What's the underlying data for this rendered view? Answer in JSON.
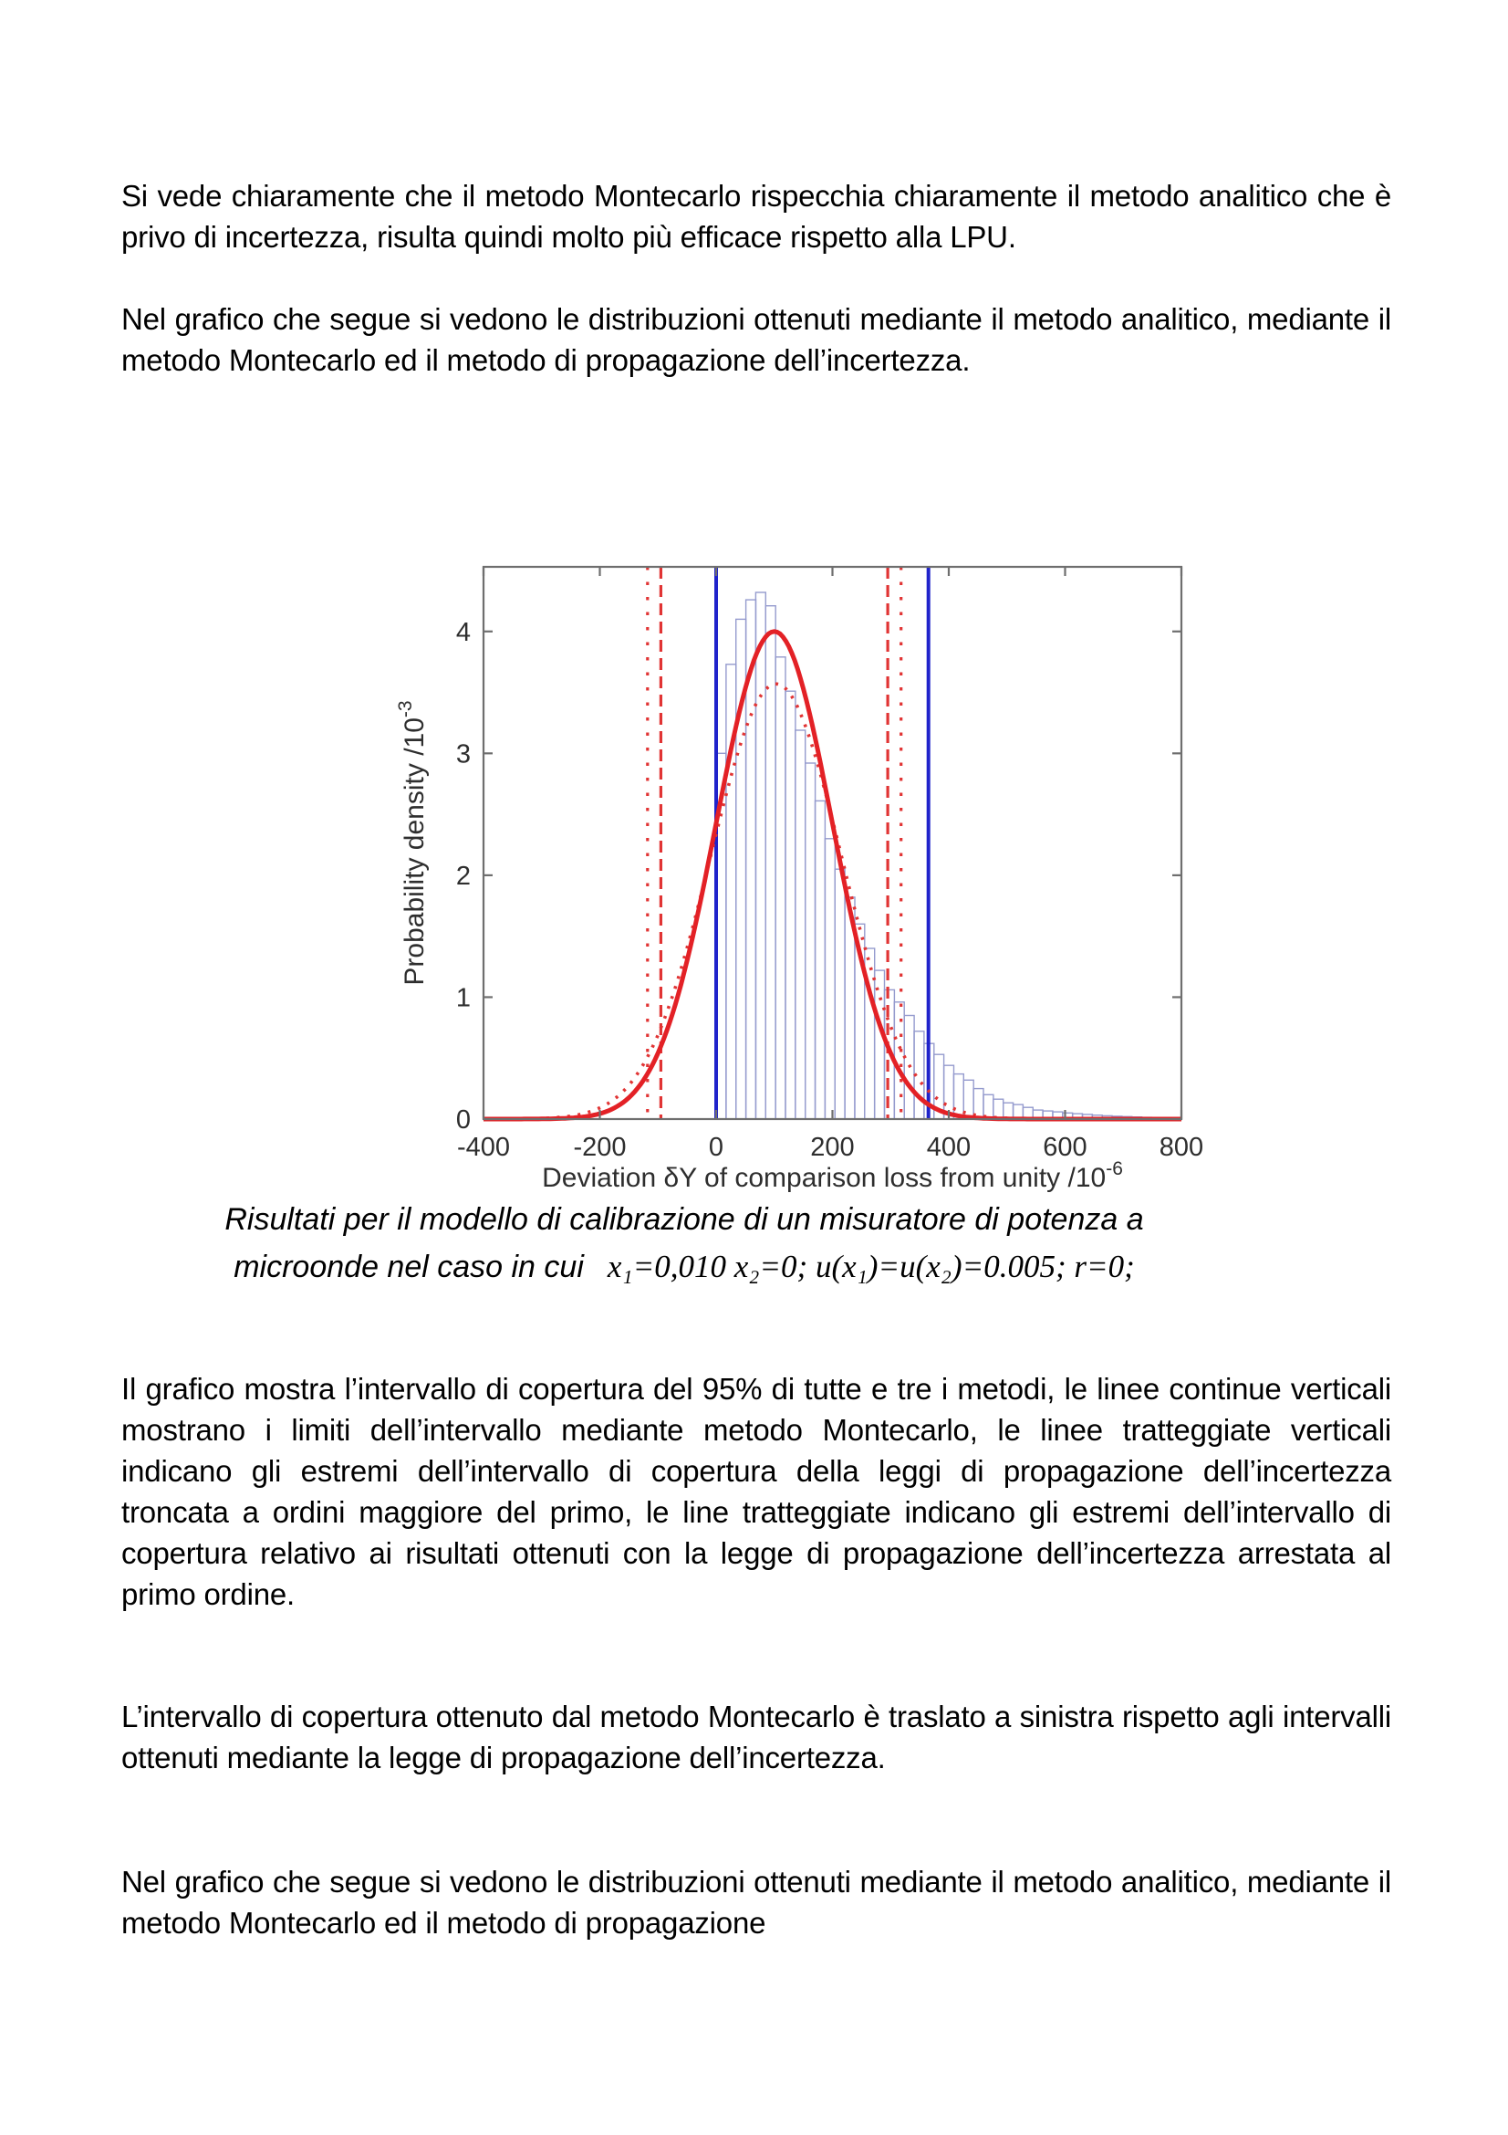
{
  "document": {
    "paragraphs": {
      "p1": "Si vede chiaramente che il metodo Montecarlo rispecchia chiaramente il metodo analitico che è privo di incertezza,  risulta quindi molto più efficace rispetto alla LPU.",
      "p2": "Nel grafico che segue si vedono le distribuzioni ottenuti mediante il metodo analitico,  mediante il metodo Montecarlo ed il metodo di propagazione dell’incertezza.",
      "p3": "Il grafico mostra l’intervallo di copertura del 95% di tutte e tre i metodi,  le linee continue verticali mostrano i limiti dell’intervallo mediante metodo Montecarlo,  le linee tratteggiate verticali indicano gli estremi dell’intervallo di copertura della leggi di propagazione dell’incertezza troncata a ordini maggiore del primo,  le line tratteggiate indicano gli estremi dell’intervallo di copertura relativo ai risultati ottenuti con la legge di propagazione dell’incertezza arrestata al primo ordine.",
      "p4": "L’intervallo di copertura ottenuto dal metodo Montecarlo è traslato a sinistra rispetto agli intervalli ottenuti mediante la legge di propagazione dell’incertezza.",
      "p5": "Nel grafico che segue si vedono le distribuzioni ottenuti mediante il metodo analitico,  mediante il metodo Montecarlo ed il metodo di propagazione"
    },
    "caption": {
      "line1": "Risultati per il modello di calibrazione di un misuratore di potenza a",
      "line2_text": "microonde nel caso in cui",
      "formula": "x₁=0,010 x₂=0; u(x₁)=u(x₂)=0.005; r=0;"
    }
  },
  "chart_data": {
    "type": "histogram",
    "title": "",
    "xlabel": "Deviation δY  of comparison loss from unity /10⁻⁶",
    "ylabel": "Probability density /10⁻³",
    "xlim": [
      -400,
      800
    ],
    "ylim": [
      0,
      4.53
    ],
    "xticks": [
      -400,
      -200,
      0,
      200,
      400,
      600,
      800
    ],
    "yticks": [
      0,
      1,
      2,
      3,
      4
    ],
    "grid": false,
    "legend": "none",
    "axis_color": "#6e6e6e",
    "tick_label_color": "#2e2e2e",
    "histogram": {
      "name": "montecarlo-distribution",
      "color": "#959bce",
      "bin_start": 0,
      "bin_width": 17.02,
      "heights": [
        3.0,
        3.73,
        4.1,
        4.26,
        4.32,
        4.21,
        3.79,
        3.51,
        3.19,
        2.92,
        2.61,
        2.3,
        2.05,
        1.82,
        1.6,
        1.4,
        1.22,
        1.06,
        0.96,
        0.85,
        0.72,
        0.62,
        0.53,
        0.44,
        0.37,
        0.32,
        0.25,
        0.2,
        0.163,
        0.133,
        0.119,
        0.096,
        0.074,
        0.067,
        0.059,
        0.05,
        0.044,
        0.038,
        0.032,
        0.027,
        0.023,
        0.02,
        0.017,
        0.014,
        0.012,
        0.01,
        0.008
      ]
    },
    "curves": [
      {
        "name": "lpu-first-order-pdf",
        "style": "dotted",
        "color": "#e13434",
        "peak": 3.57,
        "mean": 103,
        "sigma": 112
      },
      {
        "name": "analytic-pdf",
        "style": "solid",
        "color": "#e32126",
        "peak": 4.0,
        "mean": 100,
        "sigma": 100
      }
    ],
    "vlines": [
      {
        "name": "lpu-first-order-95-low",
        "x": -118,
        "style": "dotted",
        "color": "#e13434"
      },
      {
        "name": "lpu-truncated-95-low",
        "x": -95,
        "style": "dashed",
        "color": "#e13434"
      },
      {
        "name": "lpu-truncated-95-high",
        "x": 295,
        "style": "dashed",
        "color": "#e13434"
      },
      {
        "name": "lpu-first-order-95-high",
        "x": 318,
        "style": "dotted",
        "color": "#e13434"
      },
      {
        "name": "montecarlo-95-low",
        "x": 0,
        "style": "solid",
        "color": "#2023cb"
      },
      {
        "name": "montecarlo-95-high",
        "x": 365,
        "style": "solid",
        "color": "#2023cb"
      }
    ]
  }
}
